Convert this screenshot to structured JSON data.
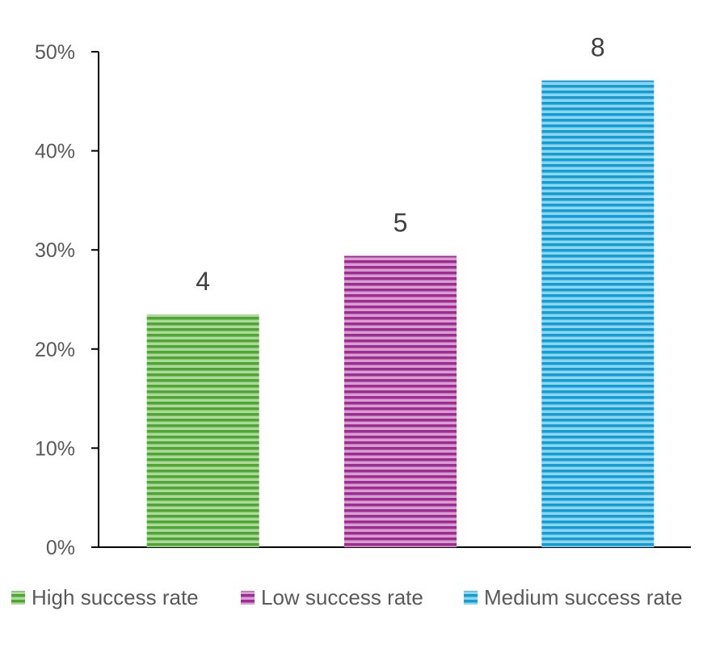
{
  "chart_data": {
    "type": "bar",
    "categories": [
      "High success rate",
      "Low success rate",
      "Medium success rate"
    ],
    "values": [
      23.5,
      29.4,
      47.1
    ],
    "data_labels": [
      "4",
      "5",
      "8"
    ],
    "colors": [
      "#4EA72E",
      "#A02B93",
      "#0F9ED5"
    ],
    "title": "",
    "xlabel": "",
    "ylabel": "",
    "ylim": [
      0,
      50
    ],
    "yticks": [
      "0%",
      "10%",
      "20%",
      "30%",
      "40%",
      "50%"
    ],
    "grid": false,
    "legend": "bottom",
    "fill_pattern": "horizontal-stripes"
  }
}
